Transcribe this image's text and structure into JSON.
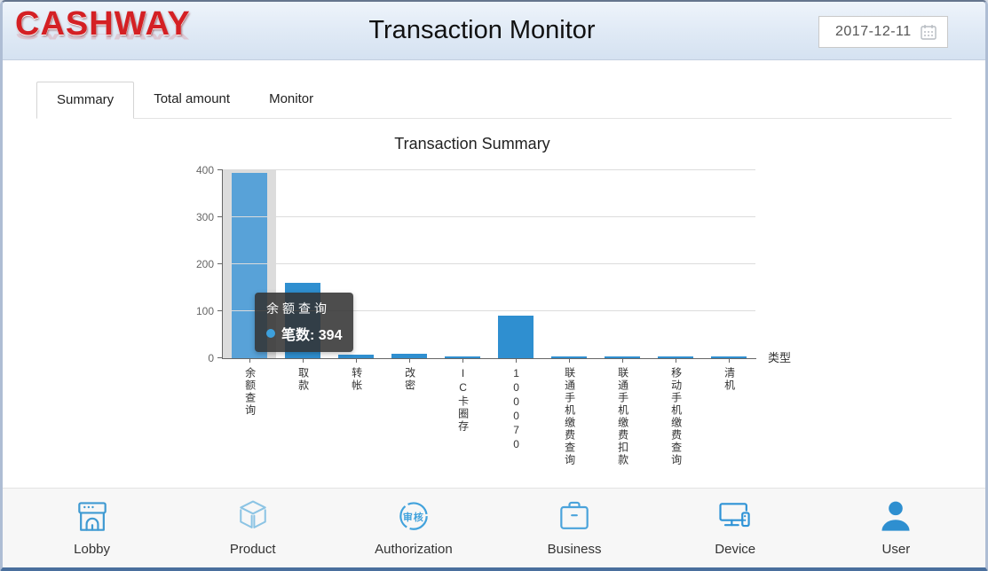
{
  "header": {
    "logo": "CASHWAY",
    "title": "Transaction Monitor",
    "date": {
      "value": "2017-12-11"
    }
  },
  "tabs": [
    {
      "label": "Summary",
      "active": true
    },
    {
      "label": "Total amount",
      "active": false
    },
    {
      "label": "Monitor",
      "active": false
    }
  ],
  "chart_data": {
    "type": "bar",
    "title": "Transaction Summary",
    "categories": [
      "余额查询",
      "取款",
      "转帐",
      "改密",
      "IC卡圈存",
      "100070",
      "联通手机缴费查询",
      "联通手机缴费扣款",
      "移动手机缴费查询",
      "清机"
    ],
    "values": [
      394,
      160,
      8,
      10,
      3,
      90,
      3,
      3,
      3,
      1
    ],
    "xlabel": "类型",
    "ylabel": "",
    "ylim": [
      0,
      400
    ],
    "yticks": [
      0,
      100,
      200,
      300,
      400
    ],
    "grid": true,
    "legend": "none",
    "bar_color": "#2f8fd0",
    "highlighted_index": 0,
    "highlight_bar_color": "#58a2d8",
    "highlight_band_color": "#dcdcdc"
  },
  "tooltip": {
    "title": "余额查询",
    "text": "笔数: 394",
    "marker_color": "#3da0dc"
  },
  "bottom_nav": {
    "items": [
      {
        "label": "Lobby",
        "icon": "storefront-icon",
        "color": "#3f9ad2"
      },
      {
        "label": "Product",
        "icon": "cube-icon",
        "color": "#8cc4e4"
      },
      {
        "label": "Authorization",
        "icon": "audit-stamp-icon",
        "icon_text": "审核",
        "color": "#41a2dc"
      },
      {
        "label": "Business",
        "icon": "briefcase-icon",
        "color": "#4aa3db"
      },
      {
        "label": "Device",
        "icon": "monitor-icon",
        "color": "#2f93d6"
      },
      {
        "label": "User",
        "icon": "user-icon",
        "color": "#2e8fd0"
      }
    ]
  }
}
